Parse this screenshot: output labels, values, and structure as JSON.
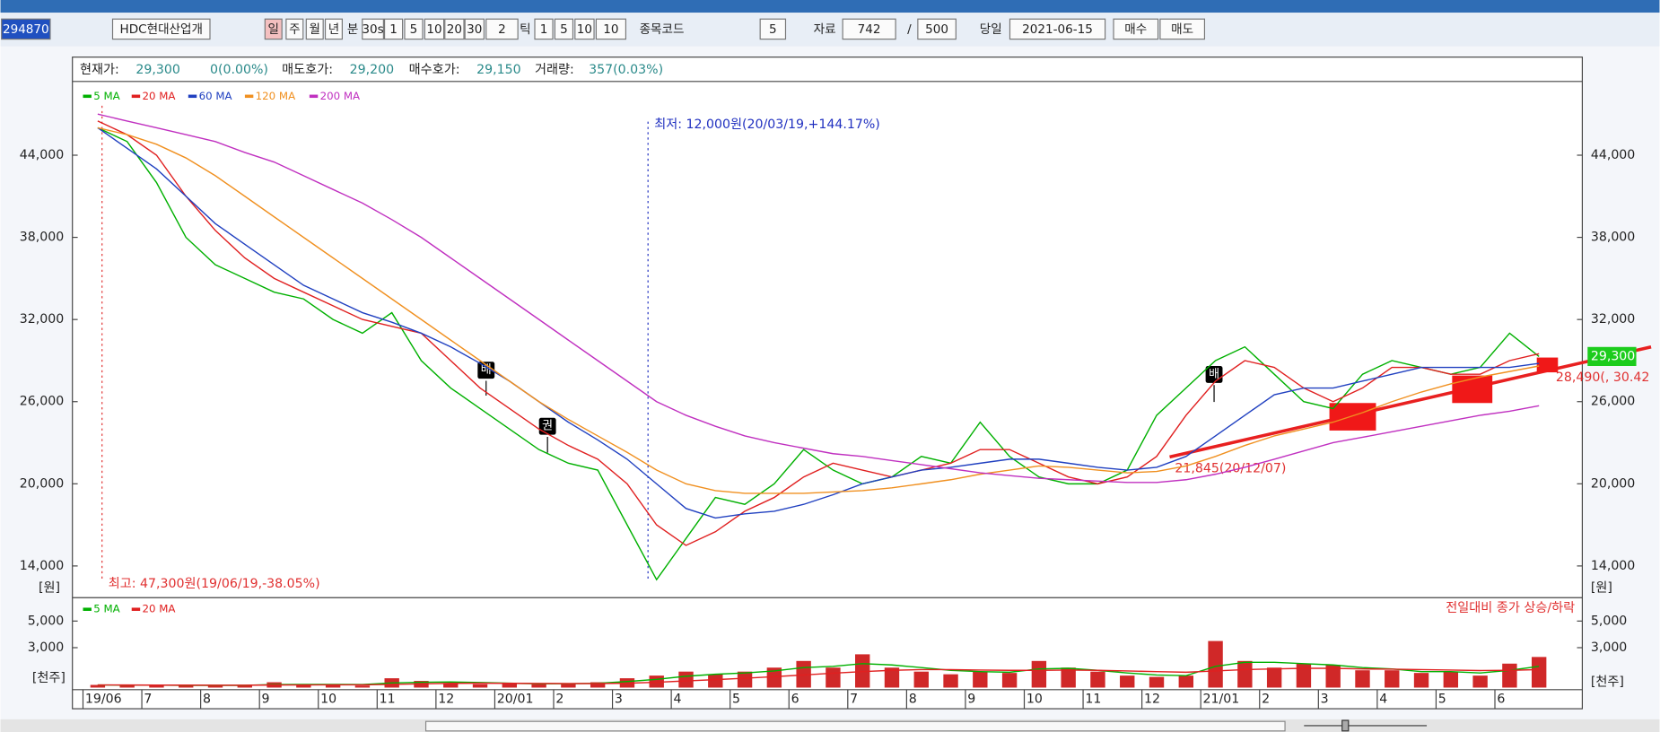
{
  "toolbar": {
    "code": "294870",
    "name": "HDC현대산업개",
    "periods": [
      "일",
      "주",
      "월",
      "년"
    ],
    "minute_label": "분",
    "minute_options": [
      "30s",
      "1",
      "5",
      "10",
      "20",
      "30"
    ],
    "tick_count": "2",
    "tick_label": "틱",
    "tick_options": [
      "1",
      "5",
      "10"
    ],
    "tick_input": "10",
    "code_label": "종목코드",
    "step": "5",
    "data_label": "자료",
    "data_count": "742",
    "separator": "/",
    "display_count": "500",
    "today_label": "당일",
    "date": "2021-06-15",
    "buy": "매수",
    "sell": "매도"
  },
  "quote": {
    "price_label": "현재가:",
    "price": "29,300",
    "change": "0(0.00%)",
    "ask_label": "매도호가:",
    "ask": "29,200",
    "bid_label": "매수호가:",
    "bid": "29,150",
    "volume_label": "거래량:",
    "volume": "357(0.03%)"
  },
  "chart_data": [
    {
      "type": "line",
      "categories": [
        "19/06",
        null,
        "7",
        null,
        "8",
        null,
        "9",
        null,
        "10",
        null,
        "11",
        null,
        "12",
        null,
        "20/01",
        null,
        "2",
        null,
        "3",
        null,
        "4",
        null,
        "5",
        null,
        "6",
        null,
        "7",
        null,
        "8",
        null,
        "9",
        null,
        "10",
        null,
        "11",
        null,
        "12",
        null,
        "21/01",
        null,
        "2",
        null,
        "3",
        null,
        "4",
        null,
        "5",
        null,
        "6",
        null
      ],
      "ylim": [
        11800,
        49000
      ],
      "yticks": [
        {
          "value": 14000,
          "label": "14,000"
        },
        {
          "value": 20000,
          "label": "20,000"
        },
        {
          "value": 26000,
          "label": "26,000"
        },
        {
          "value": 32000,
          "label": "32,000"
        },
        {
          "value": 38000,
          "label": "38,000"
        },
        {
          "value": 44000,
          "label": "44,000"
        }
      ],
      "series": [
        {
          "name": "5 MA",
          "color": "#00b000",
          "values": [
            46000,
            45000,
            42000,
            38000,
            36000,
            35000,
            34000,
            33500,
            32000,
            31000,
            32500,
            29000,
            27000,
            25500,
            24000,
            22500,
            21500,
            21000,
            17000,
            13000,
            16000,
            19000,
            18500,
            20000,
            22500,
            21000,
            20000,
            20500,
            22000,
            21500,
            24500,
            22000,
            20500,
            20000,
            20000,
            21000,
            25000,
            27000,
            29000,
            30000,
            28000,
            26000,
            25500,
            28000,
            29000,
            28500,
            28000,
            28500,
            31000,
            29300
          ]
        },
        {
          "name": "20 MA",
          "color": "#e02020",
          "values": [
            46500,
            45500,
            44000,
            41000,
            38500,
            36500,
            35000,
            34000,
            33000,
            32000,
            31500,
            31000,
            29000,
            27000,
            25500,
            24000,
            22800,
            21800,
            20000,
            17000,
            15500,
            16500,
            18000,
            19000,
            20500,
            21500,
            21000,
            20500,
            21000,
            21500,
            22500,
            22500,
            21500,
            20500,
            20000,
            20500,
            22000,
            25000,
            27500,
            29000,
            28500,
            27000,
            26000,
            27000,
            28500,
            28500,
            28000,
            28000,
            29000,
            29500
          ]
        },
        {
          "name": "60 MA",
          "color": "#2040c0",
          "values": [
            46000,
            44500,
            43000,
            41000,
            39000,
            37500,
            36000,
            34500,
            33500,
            32500,
            31800,
            31000,
            30000,
            28800,
            27500,
            26000,
            24500,
            23200,
            21800,
            20000,
            18200,
            17500,
            17800,
            18000,
            18500,
            19200,
            20000,
            20500,
            21000,
            21200,
            21500,
            21800,
            21800,
            21500,
            21200,
            21000,
            21200,
            22000,
            23500,
            25000,
            26500,
            27000,
            27000,
            27500,
            28000,
            28500,
            28500,
            28500,
            28500,
            28800
          ]
        },
        {
          "name": "120 MA",
          "color": "#f09020",
          "values": [
            46000,
            45500,
            44800,
            43800,
            42500,
            41000,
            39500,
            38000,
            36500,
            35000,
            33500,
            32000,
            30500,
            29000,
            27500,
            26000,
            24700,
            23500,
            22300,
            21000,
            20000,
            19500,
            19300,
            19300,
            19300,
            19400,
            19500,
            19700,
            20000,
            20300,
            20700,
            21000,
            21300,
            21200,
            21000,
            20800,
            20900,
            21300,
            22000,
            22800,
            23500,
            24000,
            24500,
            25200,
            26000,
            26700,
            27300,
            27800,
            28200,
            28600
          ]
        },
        {
          "name": "200 MA",
          "color": "#c030c0",
          "values": [
            47000,
            46500,
            46000,
            45500,
            45000,
            44200,
            43500,
            42500,
            41500,
            40500,
            39300,
            38000,
            36500,
            35000,
            33500,
            32000,
            30500,
            29000,
            27500,
            26000,
            25000,
            24200,
            23500,
            23000,
            22600,
            22200,
            22000,
            21700,
            21400,
            21100,
            20800,
            20600,
            20400,
            20300,
            20200,
            20100,
            20100,
            20300,
            20700,
            21200,
            21800,
            22400,
            23000,
            23400,
            23800,
            24200,
            24600,
            25000,
            25300,
            25700
          ]
        }
      ],
      "annotations": {
        "high": "최고: 47,300원(19/06/19,-38.05%)",
        "low": "최저: 12,000원(20/03/19,+144.17%)",
        "support": "21,845(20/12/07)",
        "trend": "28,490(, 30.42",
        "current": "29,300",
        "unit": "[원]",
        "events": [
          "배",
          "권"
        ]
      }
    },
    {
      "type": "bar",
      "color": "#d02828",
      "values": [
        200,
        150,
        200,
        150,
        200,
        150,
        400,
        200,
        200,
        150,
        700,
        500,
        300,
        250,
        300,
        250,
        300,
        400,
        700,
        900,
        1200,
        1000,
        1200,
        1500,
        2000,
        1500,
        2500,
        1500,
        1200,
        1000,
        1200,
        1100,
        2000,
        1500,
        1200,
        900,
        800,
        900,
        3500,
        2000,
        1500,
        1800,
        1700,
        1300,
        1300,
        1100,
        1200,
        900,
        1800,
        2300
      ],
      "ylim": [
        0,
        6600
      ],
      "yticks": [
        {
          "value": 3000,
          "label": "3,000"
        },
        {
          "value": 5000,
          "label": "5,000"
        }
      ],
      "series": [
        {
          "name": "5 MA",
          "color": "#00b000",
          "values": [
            200,
            180,
            180,
            170,
            170,
            170,
            230,
            240,
            240,
            230,
            350,
            400,
            420,
            380,
            330,
            280,
            290,
            320,
            450,
            620,
            850,
            1000,
            1100,
            1250,
            1500,
            1600,
            1800,
            1700,
            1500,
            1300,
            1200,
            1150,
            1400,
            1450,
            1300,
            1100,
            950,
            900,
            1600,
            1900,
            1900,
            1800,
            1700,
            1500,
            1400,
            1200,
            1200,
            1100,
            1300,
            1600
          ]
        },
        {
          "name": "20 MA",
          "color": "#e02020",
          "values": [
            200,
            190,
            185,
            180,
            178,
            176,
            190,
            200,
            205,
            210,
            240,
            280,
            320,
            330,
            320,
            310,
            300,
            300,
            330,
            400,
            500,
            600,
            700,
            820,
            950,
            1080,
            1200,
            1300,
            1350,
            1350,
            1320,
            1300,
            1300,
            1320,
            1300,
            1250,
            1200,
            1150,
            1250,
            1350,
            1400,
            1450,
            1450,
            1400,
            1380,
            1350,
            1320,
            1280,
            1300,
            1350
          ]
        }
      ],
      "note": "전일대비 종가 상승/하락",
      "unit": "[천주]"
    }
  ]
}
